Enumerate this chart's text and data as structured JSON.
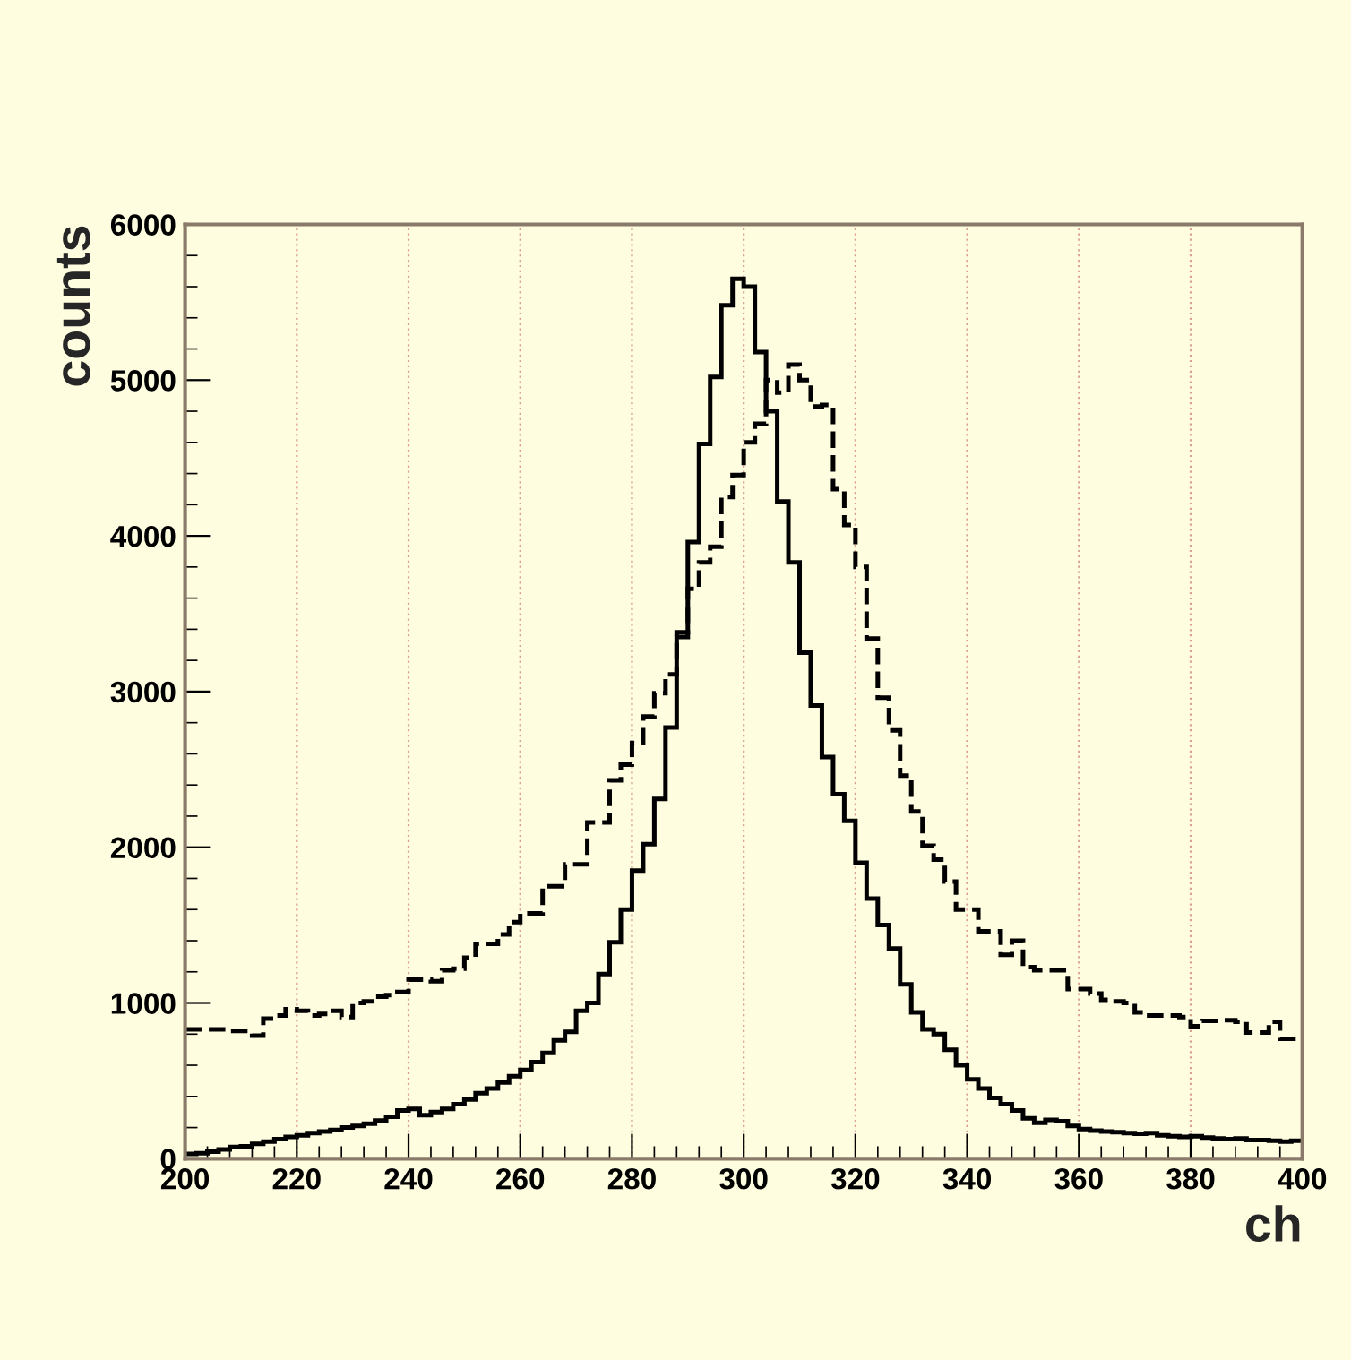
{
  "chart_data": {
    "type": "histogram",
    "xlabel": "ch",
    "ylabel": "counts",
    "bins": [
      200,
      202,
      204,
      206,
      208,
      210,
      212,
      214,
      216,
      218,
      220,
      222,
      224,
      226,
      228,
      230,
      232,
      234,
      236,
      238,
      240,
      242,
      244,
      246,
      248,
      250,
      252,
      254,
      256,
      258,
      260,
      262,
      264,
      266,
      268,
      270,
      272,
      274,
      276,
      278,
      280,
      282,
      284,
      286,
      288,
      290,
      292,
      294,
      296,
      298,
      300,
      302,
      304,
      306,
      308,
      310,
      312,
      314,
      316,
      318,
      320,
      322,
      324,
      326,
      328,
      330,
      332,
      334,
      336,
      338,
      340,
      342,
      344,
      346,
      348,
      350,
      352,
      354,
      356,
      358,
      360,
      362,
      364,
      366,
      368,
      370,
      372,
      374,
      376,
      378,
      380,
      382,
      384,
      386,
      388,
      390,
      392,
      394,
      396,
      398,
      400
    ],
    "series": [
      {
        "color": "#000000",
        "line_style": "solid",
        "values": [
          30,
          35,
          45,
          60,
          75,
          80,
          95,
          110,
          125,
          140,
          150,
          165,
          175,
          185,
          200,
          210,
          225,
          245,
          270,
          310,
          320,
          280,
          300,
          320,
          350,
          380,
          420,
          450,
          490,
          530,
          570,
          620,
          680,
          760,
          815,
          950,
          1000,
          1185,
          1390,
          1600,
          1850,
          2020,
          2310,
          2770,
          3350,
          3960,
          4590,
          5020,
          5480,
          5650,
          5600,
          5180,
          4800,
          4220,
          3830,
          3250,
          2910,
          2580,
          2340,
          2170,
          1900,
          1670,
          1500,
          1350,
          1120,
          940,
          830,
          800,
          700,
          600,
          510,
          450,
          390,
          350,
          310,
          260,
          230,
          250,
          240,
          210,
          190,
          180,
          175,
          170,
          165,
          160,
          165,
          150,
          145,
          140,
          145,
          135,
          130,
          125,
          130,
          120,
          120,
          115,
          110,
          115
        ]
      },
      {
        "color": "#000000",
        "line_style": "dashed",
        "values": [
          830,
          830,
          830,
          830,
          820,
          820,
          790,
          900,
          920,
          960,
          950,
          920,
          930,
          950,
          910,
          1000,
          1010,
          1040,
          1050,
          1070,
          1150,
          1150,
          1140,
          1210,
          1220,
          1290,
          1380,
          1380,
          1440,
          1520,
          1575,
          1575,
          1750,
          1750,
          1890,
          1890,
          2160,
          2160,
          2430,
          2530,
          2670,
          2840,
          2990,
          3110,
          3380,
          3660,
          3830,
          3930,
          4250,
          4390,
          4600,
          4720,
          5000,
          4920,
          5100,
          5000,
          4830,
          4840,
          4300,
          4070,
          3800,
          3340,
          2960,
          2750,
          2460,
          2230,
          2010,
          1920,
          1780,
          1600,
          1600,
          1460,
          1460,
          1310,
          1400,
          1230,
          1210,
          1210,
          1210,
          1090,
          1090,
          1060,
          1020,
          1010,
          1000,
          940,
          920,
          920,
          920,
          910,
          850,
          885,
          885,
          890,
          880,
          810,
          810,
          880,
          770,
          770
        ]
      }
    ],
    "xlim": [
      200,
      400
    ],
    "xticks": [
      200,
      220,
      240,
      260,
      280,
      300,
      320,
      340,
      360,
      380,
      400
    ],
    "ylim": [
      0,
      6000
    ],
    "yticks": [
      0,
      1000,
      2000,
      3000,
      4000,
      5000,
      6000
    ],
    "grid": "x"
  }
}
